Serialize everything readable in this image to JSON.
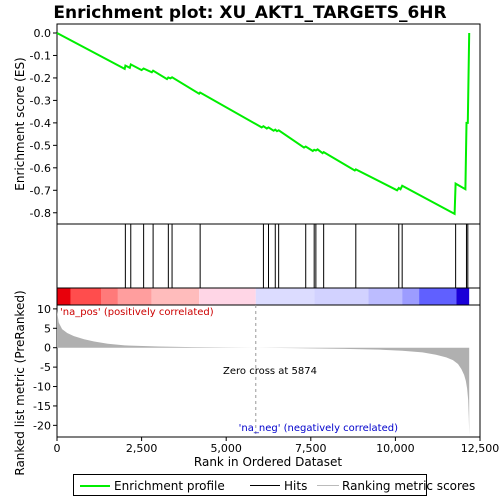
{
  "chart_data": {
    "type": "line",
    "title": "Enrichment plot: XU_AKT1_TARGETS_6HR",
    "xlabel": "Rank in Ordered Dataset",
    "es_panel": {
      "ylabel": "Enrichment score (ES)",
      "ylim": [
        -0.85,
        0.04
      ],
      "yticks": [
        0.0,
        -0.1,
        -0.2,
        -0.3,
        -0.4,
        -0.5,
        -0.6,
        -0.7,
        -0.8
      ],
      "ytick_labels": [
        "0.0",
        "-0.1",
        "-0.2",
        "-0.3",
        "-0.4",
        "-0.5",
        "-0.6",
        "-0.7",
        "-0.8"
      ],
      "series": [
        {
          "name": "Enrichment profile",
          "color": "#00ee00",
          "x": [
            0,
            2000,
            2020,
            2150,
            2180,
            2500,
            2560,
            2800,
            2840,
            3250,
            3290,
            3350,
            3400,
            4200,
            4230,
            6050,
            6100,
            6200,
            6250,
            6400,
            6450,
            6500,
            6550,
            7300,
            7350,
            7560,
            7600,
            7650,
            7700,
            7850,
            7880,
            8800,
            8830,
            10050,
            10100,
            10150,
            10200,
            11750,
            11780,
            12070,
            12100,
            12140,
            12180
          ],
          "y": [
            0.0,
            -0.16,
            -0.145,
            -0.155,
            -0.14,
            -0.165,
            -0.158,
            -0.175,
            -0.168,
            -0.205,
            -0.198,
            -0.202,
            -0.197,
            -0.27,
            -0.265,
            -0.42,
            -0.415,
            -0.425,
            -0.42,
            -0.435,
            -0.43,
            -0.437,
            -0.433,
            -0.51,
            -0.505,
            -0.525,
            -0.52,
            -0.523,
            -0.518,
            -0.535,
            -0.53,
            -0.612,
            -0.607,
            -0.7,
            -0.69,
            -0.695,
            -0.68,
            -0.805,
            -0.67,
            -0.695,
            -0.4,
            -0.4,
            0.0
          ]
        }
      ]
    },
    "hits": {
      "name": "Hits",
      "positions": [
        2020,
        2180,
        2560,
        2840,
        3290,
        3400,
        4230,
        6100,
        6250,
        6450,
        6550,
        7350,
        7600,
        7650,
        7880,
        8830,
        10100,
        10200,
        11780,
        12100,
        12140
      ]
    },
    "color_bar": {
      "segments": [
        {
          "from": 0,
          "to": 400,
          "color": "#e8000b"
        },
        {
          "from": 400,
          "to": 1300,
          "color": "#ff4d4d"
        },
        {
          "from": 1300,
          "to": 1800,
          "color": "#ff7a7a"
        },
        {
          "from": 1800,
          "to": 2800,
          "color": "#ff9e9e"
        },
        {
          "from": 2800,
          "to": 4200,
          "color": "#ffbcbc"
        },
        {
          "from": 4200,
          "to": 5874,
          "color": "#ffd6e6"
        },
        {
          "from": 5874,
          "to": 7600,
          "color": "#dcdcff"
        },
        {
          "from": 7600,
          "to": 9200,
          "color": "#d2d2ff"
        },
        {
          "from": 9200,
          "to": 10200,
          "color": "#bcbcff"
        },
        {
          "from": 10200,
          "to": 10700,
          "color": "#9c9cff"
        },
        {
          "from": 10700,
          "to": 11800,
          "color": "#6060ff"
        },
        {
          "from": 11800,
          "to": 12180,
          "color": "#1a00d8"
        }
      ]
    },
    "metric_panel": {
      "ylabel": "Ranked list metric (PreRanked)",
      "ylim": [
        -23,
        11
      ],
      "yticks": [
        10,
        5,
        0,
        -5,
        -10,
        -15,
        -20
      ],
      "ytick_labels": [
        "10",
        "5",
        "0",
        "-5",
        "-10",
        "-15",
        "-20"
      ],
      "series": [
        {
          "name": "Ranking metric scores",
          "color": "#b0b0b0",
          "x": [
            0,
            50,
            150,
            300,
            500,
            800,
            1100,
            1500,
            2000,
            3000,
            4000,
            5000,
            5874,
            7000,
            8500,
            9500,
            10200,
            10800,
            11200,
            11500,
            11700,
            11850,
            11950,
            12030,
            12080,
            12120,
            12150,
            12170,
            12180
          ],
          "y": [
            9.5,
            6.5,
            4.8,
            3.8,
            3.0,
            2.2,
            1.6,
            1.0,
            0.6,
            0.3,
            0.15,
            0.05,
            0.0,
            -0.1,
            -0.3,
            -0.5,
            -0.8,
            -1.2,
            -1.8,
            -2.5,
            -3.2,
            -4.2,
            -5.5,
            -7.0,
            -8.5,
            -10.5,
            -13.5,
            -18.0,
            -22.5
          ]
        }
      ],
      "annotations": [
        {
          "text": "'na_pos' (positively correlated)",
          "color": "#cc0000"
        },
        {
          "text": "Zero cross at 5874",
          "color": "#000000"
        },
        {
          "text": "'na_neg' (negatively correlated)",
          "color": "#0000cc"
        }
      ],
      "zero_cross": 5874
    },
    "xlim": [
      0,
      12500
    ],
    "xticks": [
      0,
      2500,
      5000,
      7500,
      10000,
      12500
    ],
    "xtick_labels": [
      "0",
      "2,500",
      "5,000",
      "7,500",
      "10,000",
      "12,500"
    ],
    "grid": false,
    "legend": {
      "placement": "bottom",
      "entries": [
        "Enrichment profile",
        "Hits",
        "Ranking metric scores"
      ]
    }
  }
}
